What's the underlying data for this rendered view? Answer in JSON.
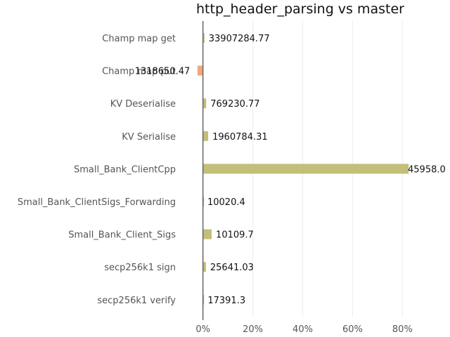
{
  "chart_data": {
    "type": "bar",
    "orientation": "horizontal",
    "title": "http_header_parsing vs master",
    "xlabel": "",
    "ylabel": "",
    "xlim": [
      -3,
      83
    ],
    "grid": true,
    "colors": {
      "positive": "#c3bf78",
      "negative": "#f0a878"
    },
    "x_ticks": [
      {
        "value": 0,
        "label": "0%"
      },
      {
        "value": 20,
        "label": "20%"
      },
      {
        "value": 40,
        "label": "40%"
      },
      {
        "value": 60,
        "label": "60%"
      },
      {
        "value": 80,
        "label": "80%"
      }
    ],
    "categories": [
      "Champ map get",
      "Champ map put",
      "KV Deserialise",
      "KV Serialise",
      "Small_Bank_ClientCpp",
      "Small_Bank_ClientSigs_Forwarding",
      "Small_Bank_Client_Sigs",
      "secp256k1 sign",
      "secp256k1 verify"
    ],
    "values": [
      0.6,
      -2.2,
      1.3,
      2.1,
      82.5,
      0.1,
      3.5,
      1.2,
      0.2
    ],
    "data_labels": [
      "33907284.77",
      "1318650.47",
      "769230.77",
      "1960784.31",
      "45958.0",
      "10020.4",
      "10109.7",
      "25641.03",
      "17391.3"
    ]
  }
}
